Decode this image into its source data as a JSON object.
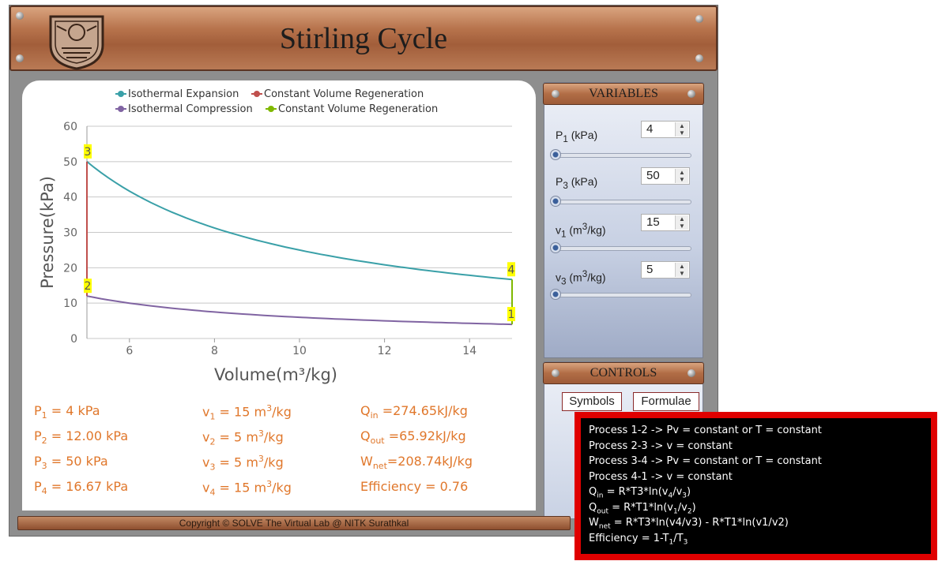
{
  "app": {
    "title": "Stirling Cycle"
  },
  "legend": [
    {
      "label": "Isothermal Expansion",
      "color": "#3aa0a8"
    },
    {
      "label": "Constant Volume Regeneration",
      "color": "#c0504d"
    },
    {
      "label": "Isothermal Compression",
      "color": "#8064a2"
    },
    {
      "label": "Constant Volume Regeneration",
      "color": "#7fb800"
    }
  ],
  "chart_data": {
    "type": "line",
    "xlabel": "Volume(m³/kg)",
    "ylabel": "Pressure(kPa)",
    "xlim": [
      5,
      15
    ],
    "ylim": [
      0,
      60
    ],
    "xticks": [
      6,
      8,
      10,
      12,
      14
    ],
    "yticks": [
      0,
      10,
      20,
      30,
      40,
      50,
      60
    ],
    "grid": true,
    "legend_position": "top",
    "series": [
      {
        "name": "Isothermal Expansion",
        "color": "#3aa0a8",
        "x": [
          5,
          6,
          7,
          8,
          9,
          10,
          11,
          12,
          13,
          14,
          15
        ],
        "y": [
          50,
          41.67,
          35.71,
          31.25,
          27.78,
          25,
          22.73,
          20.83,
          19.23,
          17.86,
          16.67
        ]
      },
      {
        "name": "Constant Volume Regeneration",
        "color": "#c0504d",
        "x": [
          5,
          5
        ],
        "y": [
          12,
          50
        ]
      },
      {
        "name": "Isothermal Compression",
        "color": "#8064a2",
        "x": [
          5,
          6,
          7,
          8,
          9,
          10,
          11,
          12,
          13,
          14,
          15
        ],
        "y": [
          12,
          10,
          8.57,
          7.5,
          6.67,
          6,
          5.45,
          5,
          4.62,
          4.29,
          4
        ]
      },
      {
        "name": "Constant Volume Regeneration",
        "color": "#7fb800",
        "x": [
          15,
          15
        ],
        "y": [
          4,
          16.67
        ]
      }
    ],
    "points": [
      {
        "label": "3",
        "x": 5,
        "y": 50
      },
      {
        "label": "2",
        "x": 5,
        "y": 12
      },
      {
        "label": "4",
        "x": 15,
        "y": 16.67
      },
      {
        "label": "1",
        "x": 15,
        "y": 4
      }
    ]
  },
  "results": {
    "p1": {
      "sym": "P",
      "sub": "1",
      "rest": " = 4 kPa"
    },
    "p2": {
      "sym": "P",
      "sub": "2",
      "rest": " = 12.00 kPa"
    },
    "p3": {
      "sym": "P",
      "sub": "3",
      "rest": " = 50 kPa"
    },
    "p4": {
      "sym": "P",
      "sub": "4",
      "rest": " = 16.67 kPa"
    },
    "v1": {
      "sym": "v",
      "sub": "1",
      "rest": " = 15 m",
      "sup": "3",
      "tail": "/kg"
    },
    "v2": {
      "sym": "v",
      "sub": "2",
      "rest": " = 5 m",
      "sup": "3",
      "tail": "/kg"
    },
    "v3": {
      "sym": "v",
      "sub": "3",
      "rest": " = 5 m",
      "sup": "3",
      "tail": "/kg"
    },
    "v4": {
      "sym": "v",
      "sub": "4",
      "rest": " = 15 m",
      "sup": "3",
      "tail": "/kg"
    },
    "qin": {
      "sym": "Q",
      "sub": "in",
      "rest": " =274.65kJ/kg"
    },
    "qout": {
      "sym": "Q",
      "sub": "out",
      "rest": " =65.92kJ/kg"
    },
    "wnet": {
      "sym": "W",
      "sub": "net",
      "rest": "=208.74kJ/kg"
    },
    "eff": "Efficiency = 0.76"
  },
  "variables": {
    "header": "VARIABLES",
    "items": [
      {
        "sym": "P",
        "sub": "1",
        "unit": " (kPa)",
        "sup": "",
        "unit_tail": "",
        "value": "4",
        "level": 0.0
      },
      {
        "sym": "P",
        "sub": "3",
        "unit": " (kPa)",
        "sup": "",
        "unit_tail": "",
        "value": "50",
        "level": 0.0
      },
      {
        "sym": "v",
        "sub": "1",
        "unit": " (m",
        "sup": "3",
        "unit_tail": "/kg)",
        "value": "15",
        "level": 0.0
      },
      {
        "sym": "v",
        "sub": "3",
        "unit": " (m",
        "sup": "3",
        "unit_tail": "/kg)",
        "value": "5",
        "level": 0.0
      }
    ]
  },
  "controls": {
    "header": "CONTROLS",
    "symbols_label": "Symbols",
    "formulae_label": "Formulae"
  },
  "formulae": [
    {
      "a": "Process 1-2 -> Pv = constant or T = constant"
    },
    {
      "a": "Process 2-3 -> v = constant"
    },
    {
      "a": "Process 3-4 -> Pv = constant or T = constant"
    },
    {
      "a": "Process 4-1 -> v = constant"
    },
    {
      "a": "Q",
      "s1": "in",
      "b": " = R*T3*ln(v",
      "s2": "4",
      "c": "/v",
      "s3": "3",
      "d": ")"
    },
    {
      "a": "Q",
      "s1": "out",
      "b": " = R*T1*ln(v",
      "s2": "1",
      "c": "/v",
      "s3": "2",
      "d": ")"
    },
    {
      "a": "W",
      "s1": "net",
      "b": " = R*T3*ln(v4/v3) - R*T1*ln(v1/v2)"
    },
    {
      "a": "Efficiency = 1-T",
      "s1": "1",
      "b": "/T",
      "s2": "3"
    }
  ],
  "footer": "Copyright © SOLVE The Virtual Lab @ NITK Surathkal"
}
